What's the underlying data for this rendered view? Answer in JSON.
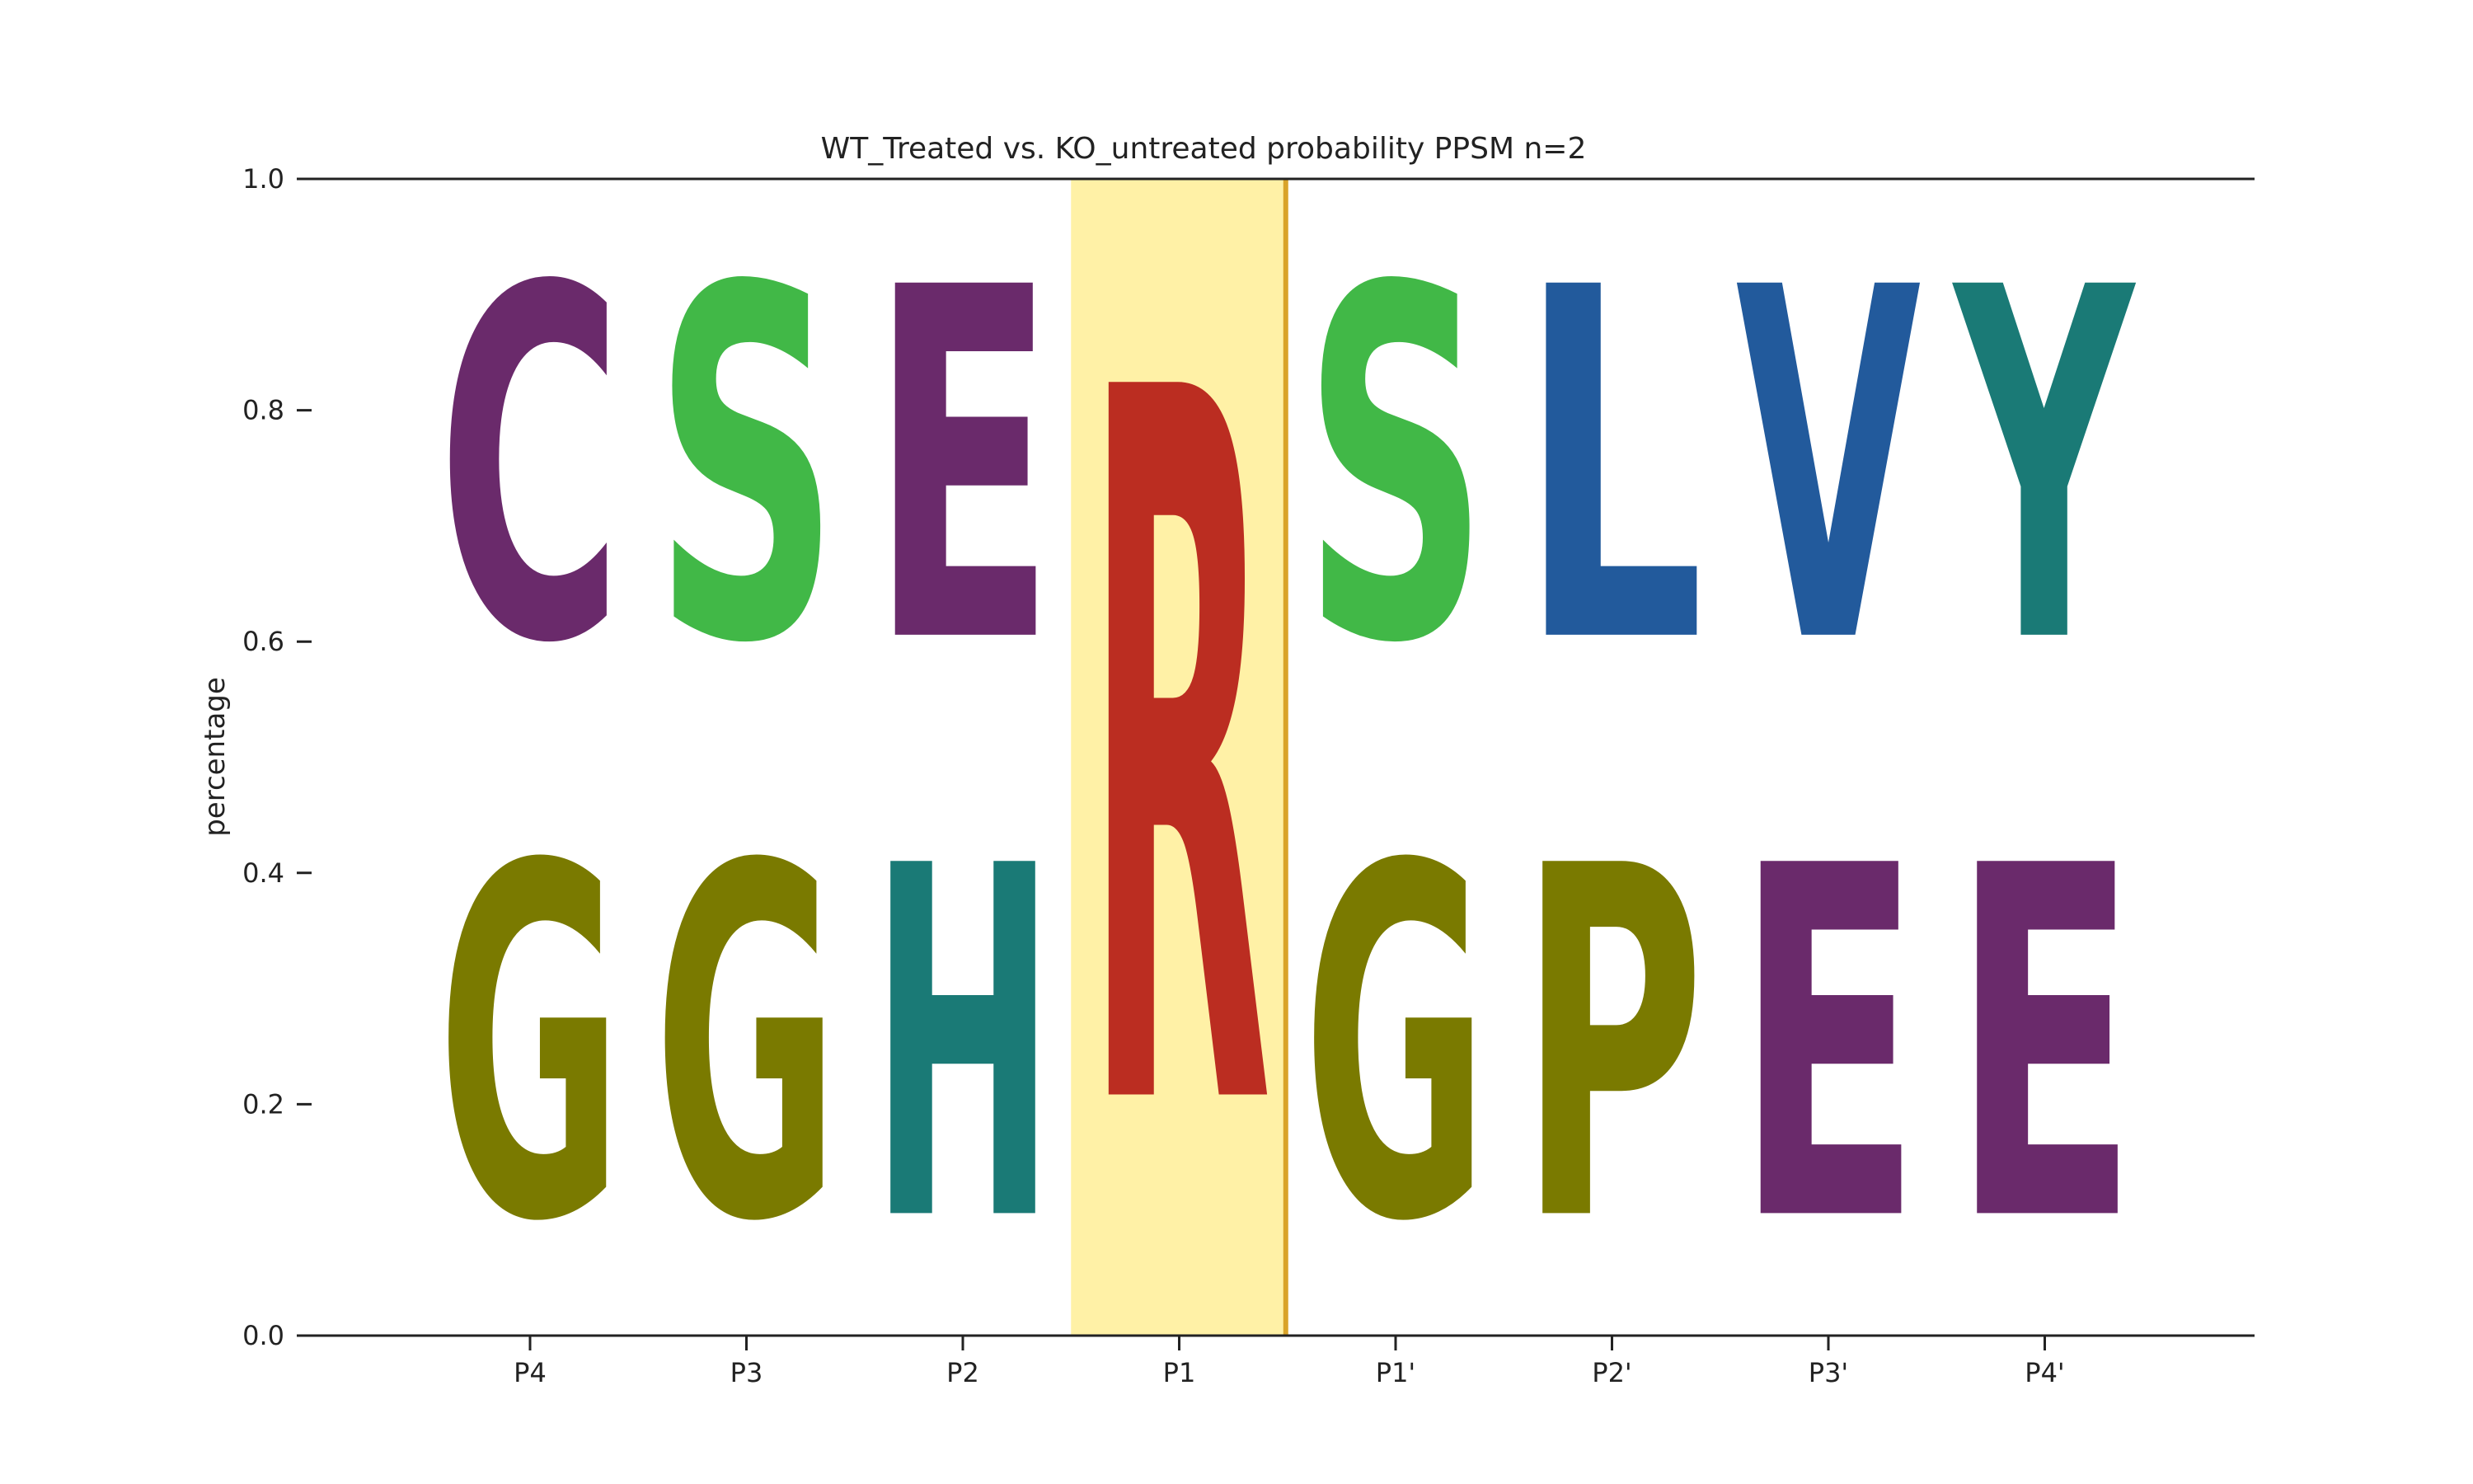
{
  "chart_data": {
    "type": "sequence_logo",
    "title": "WT_Treated vs. KO_untreated probability PPSM n=2",
    "ylabel": "percentage",
    "xlabel": "",
    "ylim": [
      0,
      1.0
    ],
    "yticks": [
      "0.0",
      "0.2",
      "0.4",
      "0.6",
      "0.8",
      "1.0"
    ],
    "categories": [
      "P4",
      "P3",
      "P2",
      "P1",
      "P1'",
      "P2'",
      "P3'",
      "P4'"
    ],
    "highlight_position": "P1",
    "positions": [
      {
        "label": "P4",
        "letters": [
          {
            "letter": "G",
            "value": 0.5
          },
          {
            "letter": "C",
            "value": 0.5
          }
        ]
      },
      {
        "label": "P3",
        "letters": [
          {
            "letter": "G",
            "value": 0.5
          },
          {
            "letter": "S",
            "value": 0.5
          }
        ]
      },
      {
        "label": "P2",
        "letters": [
          {
            "letter": "H",
            "value": 0.5
          },
          {
            "letter": "E",
            "value": 0.5
          }
        ]
      },
      {
        "label": "P1",
        "letters": [
          {
            "letter": "R",
            "value": 1.0
          }
        ]
      },
      {
        "label": "P1'",
        "letters": [
          {
            "letter": "G",
            "value": 0.5
          },
          {
            "letter": "S",
            "value": 0.5
          }
        ]
      },
      {
        "label": "P2'",
        "letters": [
          {
            "letter": "P",
            "value": 0.5
          },
          {
            "letter": "L",
            "value": 0.5
          }
        ]
      },
      {
        "label": "P3'",
        "letters": [
          {
            "letter": "E",
            "value": 0.5
          },
          {
            "letter": "V",
            "value": 0.5
          }
        ]
      },
      {
        "label": "P4'",
        "letters": [
          {
            "letter": "E",
            "value": 0.5
          },
          {
            "letter": "Y",
            "value": 0.5
          }
        ]
      }
    ],
    "letter_colors": {
      "C": "#6a2a6b",
      "E": "#6a2a6b",
      "S": "#41b847",
      "G": "#7a7a00",
      "P": "#7a7a00",
      "H": "#1a7a76",
      "Y": "#1a7a76",
      "R": "#bb2d21",
      "L": "#225a9c",
      "V": "#225a9c"
    },
    "highlight_fill": "#fff1a6",
    "highlight_edge": "#d9a32a"
  }
}
